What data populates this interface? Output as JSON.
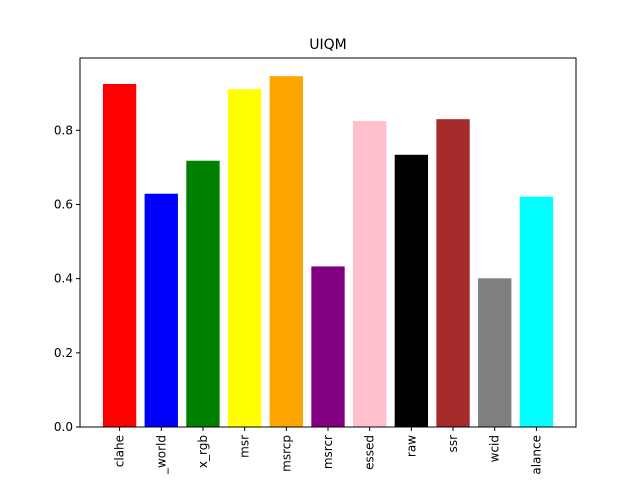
{
  "chart_data": {
    "type": "bar",
    "title": "UIQM",
    "xlabel": "",
    "ylabel": "",
    "ylim": [
      0,
      0.995
    ],
    "yticks": [
      0.0,
      0.2,
      0.4,
      0.6,
      0.8
    ],
    "ytick_labels": [
      "0.0",
      "0.2",
      "0.4",
      "0.6",
      "0.8"
    ],
    "categories": [
      "clahe",
      "_world",
      "x_rgb",
      "msr",
      "msrcp",
      "msrcr",
      "essed",
      "raw",
      "ssr",
      "wcid",
      "alance"
    ],
    "values": [
      0.925,
      0.629,
      0.718,
      0.911,
      0.946,
      0.433,
      0.825,
      0.734,
      0.83,
      0.401,
      0.621
    ],
    "colors": [
      "#ff0000",
      "#0000ff",
      "#008000",
      "#ffff00",
      "#ffa500",
      "#800080",
      "#ffc0cb",
      "#000000",
      "#a52a2a",
      "#808080",
      "#00ffff"
    ],
    "grid": false,
    "legend": "none"
  }
}
